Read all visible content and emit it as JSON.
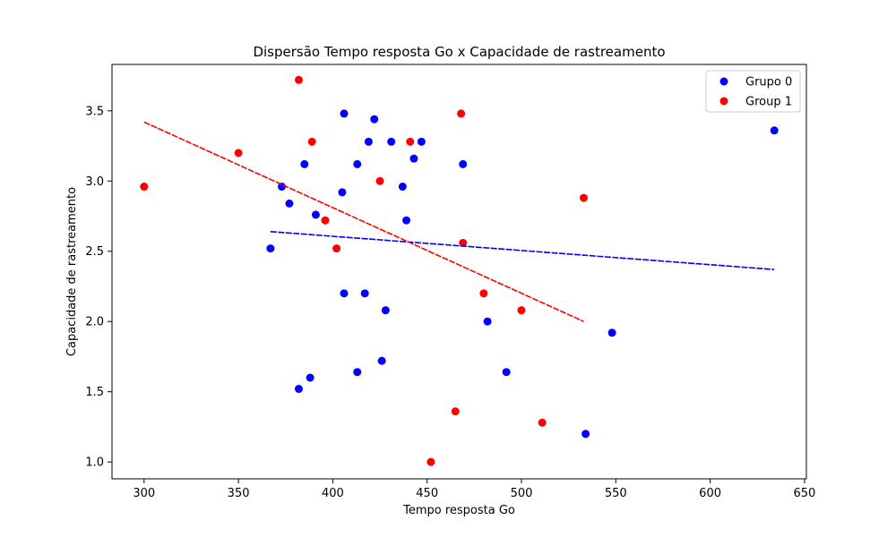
{
  "chart_data": {
    "type": "scatter",
    "title": "Dispersão Tempo resposta Go x Capacidade de rastreamento",
    "xlabel": "Tempo resposta Go",
    "ylabel": "Capacidade de rastreamento",
    "xlim": [
      283,
      651
    ],
    "ylim": [
      0.88,
      3.83
    ],
    "xticks": [
      300,
      350,
      400,
      450,
      500,
      550,
      600,
      650
    ],
    "yticks": [
      1.0,
      1.5,
      2.0,
      2.5,
      3.0,
      3.5
    ],
    "xtick_labels": [
      "300",
      "350",
      "400",
      "450",
      "500",
      "550",
      "600",
      "650"
    ],
    "ytick_labels": [
      "1.0",
      "1.5",
      "2.0",
      "2.5",
      "3.0",
      "3.5"
    ],
    "grid": false,
    "legend_position": "top-right",
    "series": [
      {
        "name": "Grupo 0",
        "color": "#0000ff",
        "points": [
          [
            367,
            2.52
          ],
          [
            373,
            2.96
          ],
          [
            377,
            2.84
          ],
          [
            382,
            1.52
          ],
          [
            385,
            3.12
          ],
          [
            388,
            1.6
          ],
          [
            391,
            2.76
          ],
          [
            405,
            2.92
          ],
          [
            406,
            3.48
          ],
          [
            406,
            2.2
          ],
          [
            413,
            1.64
          ],
          [
            413,
            3.12
          ],
          [
            417,
            2.2
          ],
          [
            419,
            3.28
          ],
          [
            422,
            3.44
          ],
          [
            426,
            1.72
          ],
          [
            428,
            2.08
          ],
          [
            431,
            3.28
          ],
          [
            437,
            2.96
          ],
          [
            439,
            2.72
          ],
          [
            443,
            3.16
          ],
          [
            447,
            3.28
          ],
          [
            469,
            3.12
          ],
          [
            482,
            2.0
          ],
          [
            492,
            1.64
          ],
          [
            534,
            1.2
          ],
          [
            548,
            1.92
          ],
          [
            634,
            3.36
          ]
        ],
        "trendline": {
          "x": [
            367,
            634
          ],
          "y": [
            2.64,
            2.37
          ]
        }
      },
      {
        "name": "Group 1",
        "color": "#ff0000",
        "points": [
          [
            300,
            2.96
          ],
          [
            350,
            3.2
          ],
          [
            382,
            3.72
          ],
          [
            389,
            3.28
          ],
          [
            396,
            2.72
          ],
          [
            402,
            2.52
          ],
          [
            425,
            3.0
          ],
          [
            441,
            3.28
          ],
          [
            452,
            1.0
          ],
          [
            465,
            1.36
          ],
          [
            468,
            3.48
          ],
          [
            469,
            2.56
          ],
          [
            480,
            2.2
          ],
          [
            500,
            2.08
          ],
          [
            511,
            1.28
          ],
          [
            533,
            2.88
          ]
        ],
        "trendline": {
          "x": [
            300,
            533
          ],
          "y": [
            3.42,
            2.0
          ]
        }
      }
    ]
  }
}
